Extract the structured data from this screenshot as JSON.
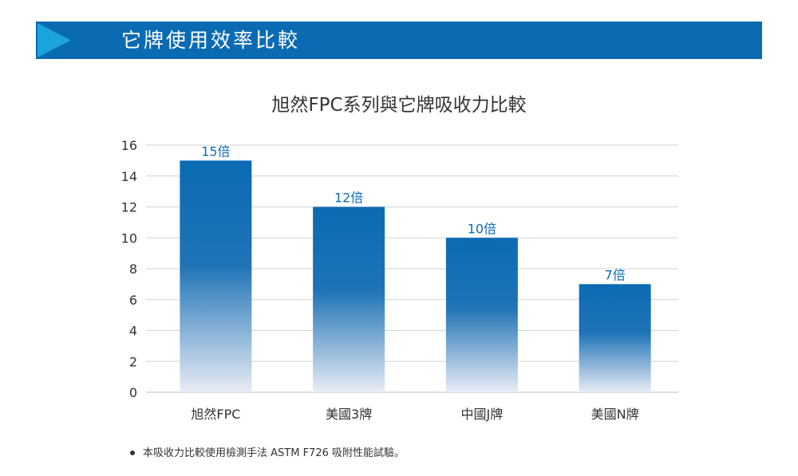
{
  "banner": {
    "title": "它牌使用效率比較",
    "color": "#0a6bb3",
    "arrow_color": "#1aa3dd"
  },
  "chart_data": {
    "type": "bar",
    "title": "旭然FPC系列與它牌吸收力比較",
    "categories": [
      "旭然FPC",
      "美國3牌",
      "中國J牌",
      "美國N牌"
    ],
    "values": [
      15,
      12,
      10,
      7
    ],
    "data_labels": [
      "15倍",
      "12倍",
      "10倍",
      "7倍"
    ],
    "ylim": [
      0,
      16
    ],
    "yticks": [
      0,
      2,
      4,
      6,
      8,
      10,
      12,
      14,
      16
    ],
    "grid": true,
    "bar_color": "#0a6bb3",
    "label_color": "#0a6bb3"
  },
  "footnote": "本吸收力比較使用檢測手法  ASTM F726 吸附性能試驗。"
}
